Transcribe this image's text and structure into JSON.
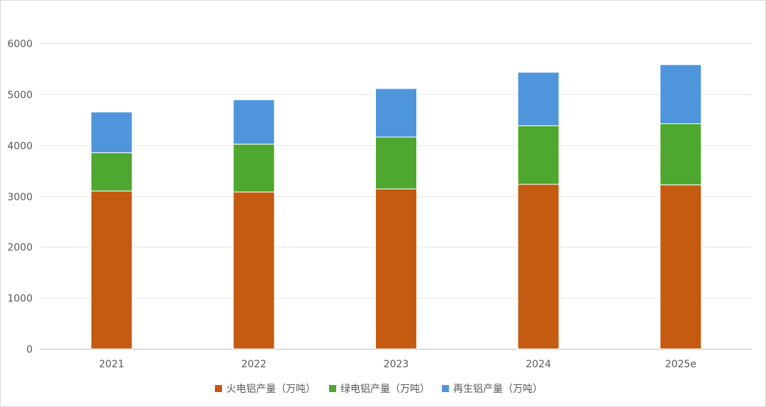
{
  "chart_data": {
    "type": "bar",
    "stacked": true,
    "categories": [
      "2021",
      "2022",
      "2023",
      "2024",
      "2025e"
    ],
    "series": [
      {
        "name": "火电铝产量（万吨）",
        "color": "#C55A11",
        "values": [
          3100,
          3080,
          3140,
          3230,
          3220
        ]
      },
      {
        "name": "绿电铝产量（万吨）",
        "color": "#4EA72E",
        "values": [
          750,
          940,
          1020,
          1150,
          1200
        ]
      },
      {
        "name": "再生铝产量（万吨）",
        "color": "#4F95DC",
        "values": [
          800,
          870,
          950,
          1050,
          1160
        ]
      }
    ],
    "ylim": [
      0,
      6000
    ],
    "yticks": [
      "0",
      "1000",
      "2000",
      "3000",
      "4000",
      "5000",
      "6000"
    ],
    "grid": true,
    "legend_position": "bottom"
  }
}
